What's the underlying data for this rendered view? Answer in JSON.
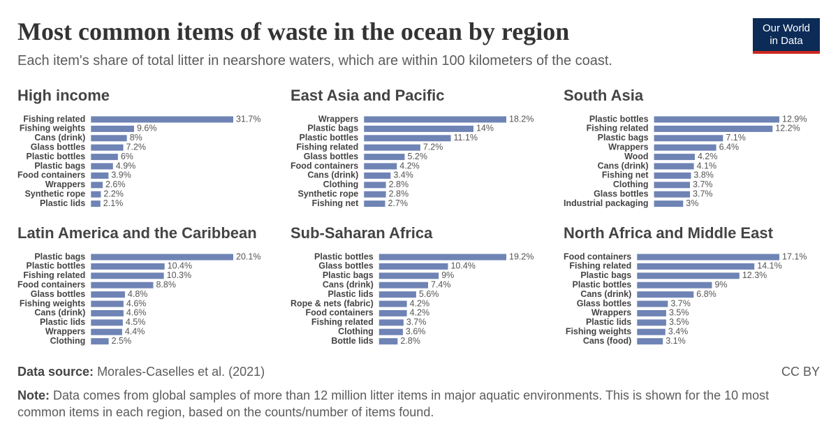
{
  "title": "Most common items of waste in the ocean by region",
  "subtitle": "Each item's share of total litter in nearshore waters, which are within 100 kilometers of the coast.",
  "logo": {
    "line1": "Our World",
    "line2": "in Data"
  },
  "source_label": "Data source:",
  "source": "Morales-Caselles et al. (2021)",
  "license": "CC BY",
  "note_label": "Note:",
  "note": "Data comes from global samples of more than 12 million litter items in major aquatic environments. This is shown for the 10 most common items in each region, based on the counts/number of items found.",
  "chart_data": [
    {
      "type": "bar",
      "title": "High income",
      "color": "#6f84b5",
      "categories": [
        "Fishing related",
        "Fishing weights",
        "Cans (drink)",
        "Glass bottles",
        "Plastic bottles",
        "Plastic bags",
        "Food containers",
        "Wrappers",
        "Synthetic rope",
        "Plastic lids"
      ],
      "values": [
        31.7,
        9.6,
        8,
        7.2,
        6,
        4.9,
        3.9,
        2.6,
        2.2,
        2.1
      ],
      "value_labels": [
        "31.7%",
        "9.6%",
        "8%",
        "7.2%",
        "6%",
        "4.9%",
        "3.9%",
        "2.6%",
        "2.2%",
        "2.1%"
      ]
    },
    {
      "type": "bar",
      "title": "East Asia and Pacific",
      "color": "#6f84b5",
      "categories": [
        "Wrappers",
        "Plastic bags",
        "Plastic bottles",
        "Fishing related",
        "Glass bottles",
        "Food containers",
        "Cans (drink)",
        "Clothing",
        "Synthetic rope",
        "Fishing net"
      ],
      "values": [
        18.2,
        14,
        11.1,
        7.2,
        5.2,
        4.2,
        3.4,
        2.8,
        2.8,
        2.7
      ],
      "value_labels": [
        "18.2%",
        "14%",
        "11.1%",
        "7.2%",
        "5.2%",
        "4.2%",
        "3.4%",
        "2.8%",
        "2.8%",
        "2.7%"
      ]
    },
    {
      "type": "bar",
      "title": "South Asia",
      "color": "#6f84b5",
      "categories": [
        "Plastic bottles",
        "Fishing related",
        "Plastic bags",
        "Wrappers",
        "Wood",
        "Cans (drink)",
        "Fishing net",
        "Clothing",
        "Glass bottles",
        "Industrial packaging"
      ],
      "values": [
        12.9,
        12.2,
        7.1,
        6.4,
        4.2,
        4.1,
        3.8,
        3.7,
        3.7,
        3
      ],
      "value_labels": [
        "12.9%",
        "12.2%",
        "7.1%",
        "6.4%",
        "4.2%",
        "4.1%",
        "3.8%",
        "3.7%",
        "3.7%",
        "3%"
      ]
    },
    {
      "type": "bar",
      "title": "Latin America and the Caribbean",
      "color": "#6f84b5",
      "categories": [
        "Plastic bags",
        "Plastic bottles",
        "Fishing related",
        "Food containers",
        "Glass bottles",
        "Fishing weights",
        "Cans (drink)",
        "Plastic lids",
        "Wrappers",
        "Clothing"
      ],
      "values": [
        20.1,
        10.4,
        10.3,
        8.8,
        4.8,
        4.6,
        4.6,
        4.5,
        4.4,
        2.5
      ],
      "value_labels": [
        "20.1%",
        "10.4%",
        "10.3%",
        "8.8%",
        "4.8%",
        "4.6%",
        "4.6%",
        "4.5%",
        "4.4%",
        "2.5%"
      ]
    },
    {
      "type": "bar",
      "title": "Sub-Saharan Africa",
      "color": "#6f84b5",
      "categories": [
        "Plastic bottles",
        "Glass bottles",
        "Plastic bags",
        "Cans (drink)",
        "Plastic lids",
        "Rope & nets (fabric)",
        "Food containers",
        "Fishing related",
        "Clothing",
        "Bottle lids"
      ],
      "values": [
        19.2,
        10.4,
        9,
        7.4,
        5.6,
        4.2,
        4.2,
        3.7,
        3.6,
        2.8
      ],
      "value_labels": [
        "19.2%",
        "10.4%",
        "9%",
        "7.4%",
        "5.6%",
        "4.2%",
        "4.2%",
        "3.7%",
        "3.6%",
        "2.8%"
      ]
    },
    {
      "type": "bar",
      "title": "North Africa and Middle East",
      "color": "#6f84b5",
      "categories": [
        "Food containers",
        "Fishing related",
        "Plastic bags",
        "Plastic bottles",
        "Cans (drink)",
        "Glass bottles",
        "Wrappers",
        "Plastic lids",
        "Fishing weights",
        "Cans (food)"
      ],
      "values": [
        17.1,
        14.1,
        12.3,
        9,
        6.8,
        3.7,
        3.5,
        3.5,
        3.4,
        3.1
      ],
      "value_labels": [
        "17.1%",
        "14.1%",
        "12.3%",
        "9%",
        "6.8%",
        "3.7%",
        "3.5%",
        "3.5%",
        "3.4%",
        "3.1%"
      ]
    }
  ]
}
